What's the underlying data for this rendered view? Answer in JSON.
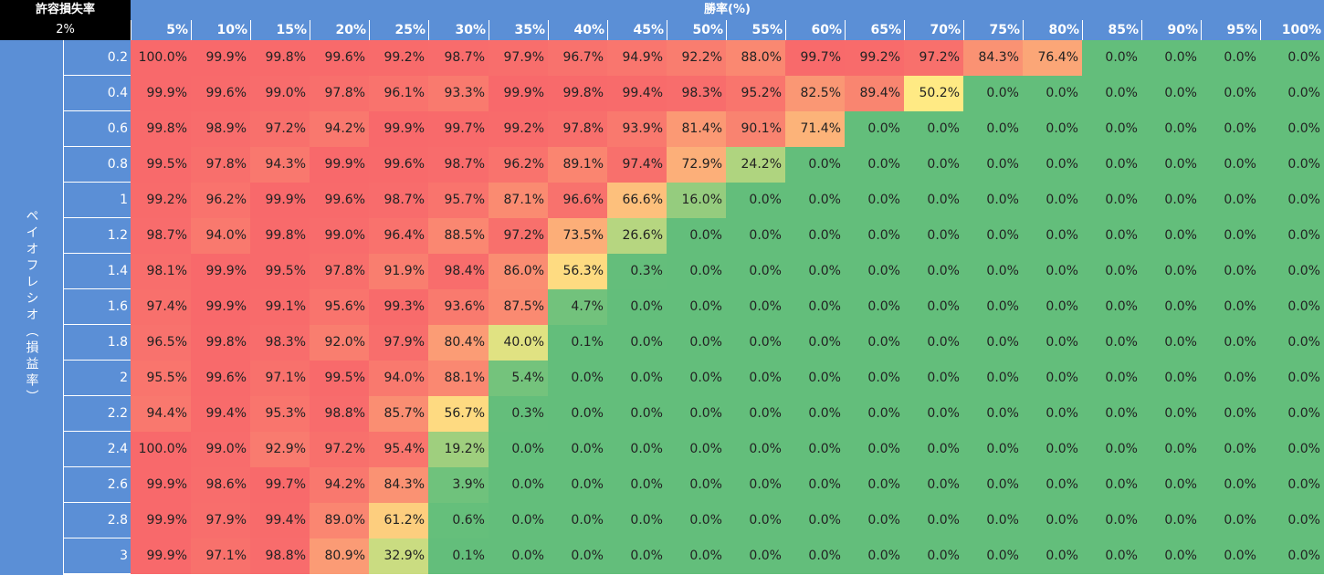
{
  "corner": {
    "title": "許容損失率",
    "value": "2%"
  },
  "colors": {
    "header_blue": "#5b8fd6",
    "corner_black": "#000000",
    "scale": [
      "#63be7b",
      "#ffeb84",
      "#f8696b"
    ]
  },
  "chart_data": {
    "type": "heatmap",
    "xlabel": "勝率(%)",
    "ylabel": "ペイオフレシオ（損益率）",
    "x": [
      "5%",
      "10%",
      "15%",
      "20%",
      "25%",
      "30%",
      "35%",
      "40%",
      "45%",
      "50%",
      "55%",
      "60%",
      "65%",
      "70%",
      "75%",
      "80%",
      "85%",
      "90%",
      "95%",
      "100%"
    ],
    "y": [
      "0.2",
      "0.4",
      "0.6",
      "0.8",
      "1",
      "1.2",
      "1.4",
      "1.6",
      "1.8",
      "2",
      "2.2",
      "2.4",
      "2.6",
      "2.8",
      "3"
    ],
    "values": [
      [
        100.0,
        99.9,
        99.8,
        99.6,
        99.2,
        98.7,
        97.9,
        96.7,
        94.9,
        92.2,
        88.0,
        99.7,
        99.2,
        97.2,
        84.3,
        76.4,
        0.0,
        0.0,
        0.0,
        0.0
      ],
      [
        99.9,
        99.6,
        99.0,
        97.8,
        96.1,
        93.3,
        99.9,
        99.8,
        99.4,
        98.3,
        95.2,
        82.5,
        89.4,
        50.2,
        0.0,
        0.0,
        0.0,
        0.0,
        0.0,
        0.0
      ],
      [
        99.8,
        98.9,
        97.2,
        94.2,
        99.9,
        99.7,
        99.2,
        97.8,
        93.9,
        81.4,
        90.1,
        71.4,
        0.0,
        0.0,
        0.0,
        0.0,
        0.0,
        0.0,
        0.0,
        0.0
      ],
      [
        99.5,
        97.8,
        94.3,
        99.9,
        99.6,
        98.7,
        96.2,
        89.1,
        97.4,
        72.9,
        24.2,
        0.0,
        0.0,
        0.0,
        0.0,
        0.0,
        0.0,
        0.0,
        0.0,
        0.0
      ],
      [
        99.2,
        96.2,
        99.9,
        99.6,
        98.7,
        95.7,
        87.1,
        96.6,
        66.6,
        16.0,
        0.0,
        0.0,
        0.0,
        0.0,
        0.0,
        0.0,
        0.0,
        0.0,
        0.0,
        0.0
      ],
      [
        98.7,
        94.0,
        99.8,
        99.0,
        96.4,
        88.5,
        97.2,
        73.5,
        26.6,
        0.0,
        0.0,
        0.0,
        0.0,
        0.0,
        0.0,
        0.0,
        0.0,
        0.0,
        0.0,
        0.0
      ],
      [
        98.1,
        99.9,
        99.5,
        97.8,
        91.9,
        98.4,
        86.0,
        56.3,
        0.3,
        0.0,
        0.0,
        0.0,
        0.0,
        0.0,
        0.0,
        0.0,
        0.0,
        0.0,
        0.0,
        0.0
      ],
      [
        97.4,
        99.9,
        99.1,
        95.6,
        99.3,
        93.6,
        87.5,
        4.7,
        0.0,
        0.0,
        0.0,
        0.0,
        0.0,
        0.0,
        0.0,
        0.0,
        0.0,
        0.0,
        0.0,
        0.0
      ],
      [
        96.5,
        99.8,
        98.3,
        92.0,
        97.9,
        80.4,
        40.0,
        0.1,
        0.0,
        0.0,
        0.0,
        0.0,
        0.0,
        0.0,
        0.0,
        0.0,
        0.0,
        0.0,
        0.0,
        0.0
      ],
      [
        95.5,
        99.6,
        97.1,
        99.5,
        94.0,
        88.1,
        5.4,
        0.0,
        0.0,
        0.0,
        0.0,
        0.0,
        0.0,
        0.0,
        0.0,
        0.0,
        0.0,
        0.0,
        0.0,
        0.0
      ],
      [
        94.4,
        99.4,
        95.3,
        98.8,
        85.7,
        56.7,
        0.3,
        0.0,
        0.0,
        0.0,
        0.0,
        0.0,
        0.0,
        0.0,
        0.0,
        0.0,
        0.0,
        0.0,
        0.0,
        0.0
      ],
      [
        100.0,
        99.0,
        92.9,
        97.2,
        95.4,
        19.2,
        0.0,
        0.0,
        0.0,
        0.0,
        0.0,
        0.0,
        0.0,
        0.0,
        0.0,
        0.0,
        0.0,
        0.0,
        0.0,
        0.0
      ],
      [
        99.9,
        98.6,
        99.7,
        94.2,
        84.3,
        3.9,
        0.0,
        0.0,
        0.0,
        0.0,
        0.0,
        0.0,
        0.0,
        0.0,
        0.0,
        0.0,
        0.0,
        0.0,
        0.0,
        0.0
      ],
      [
        99.9,
        97.9,
        99.4,
        89.0,
        61.2,
        0.6,
        0.0,
        0.0,
        0.0,
        0.0,
        0.0,
        0.0,
        0.0,
        0.0,
        0.0,
        0.0,
        0.0,
        0.0,
        0.0,
        0.0
      ],
      [
        99.9,
        97.1,
        98.8,
        80.9,
        32.9,
        0.1,
        0.0,
        0.0,
        0.0,
        0.0,
        0.0,
        0.0,
        0.0,
        0.0,
        0.0,
        0.0,
        0.0,
        0.0,
        0.0,
        0.0
      ]
    ],
    "value_format": "percent_1dp"
  }
}
